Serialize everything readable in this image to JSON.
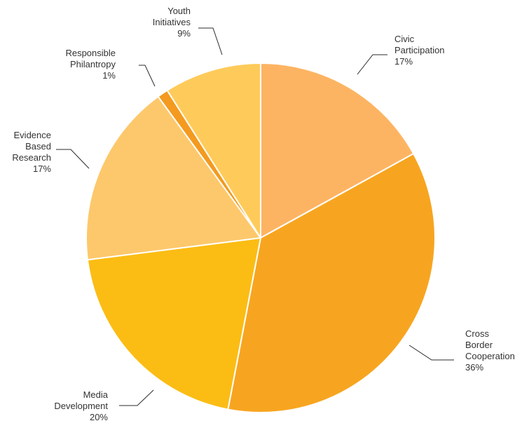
{
  "chart_data": {
    "type": "pie",
    "start_angle_deg": 0,
    "direction": "clockwise",
    "slices": [
      {
        "name": "Civic Participation",
        "label_lines": [
          "Civic",
          "Participation",
          "17%"
        ],
        "value": 17,
        "color": "#fdb462"
      },
      {
        "name": "Cross Border Cooperation",
        "label_lines": [
          "Cross",
          "Border",
          "Cooperation",
          "36%"
        ],
        "value": 36,
        "color": "#f7a520"
      },
      {
        "name": "Media Development",
        "label_lines": [
          "Media",
          "Development",
          "20%"
        ],
        "value": 20,
        "color": "#fbbd14"
      },
      {
        "name": "Evidence Based Research",
        "label_lines": [
          "Evidence",
          "Based",
          "Research",
          "17%"
        ],
        "value": 17,
        "color": "#fdc86b"
      },
      {
        "name": "Responsible Philantropy",
        "label_lines": [
          "Responsible",
          "Philantropy",
          "1%"
        ],
        "value": 1,
        "color": "#f39a1f"
      },
      {
        "name": "Youth Initiatives",
        "label_lines": [
          "Youth",
          "Initiatives",
          "9%"
        ],
        "value": 9,
        "color": "#fecb5a"
      }
    ]
  }
}
